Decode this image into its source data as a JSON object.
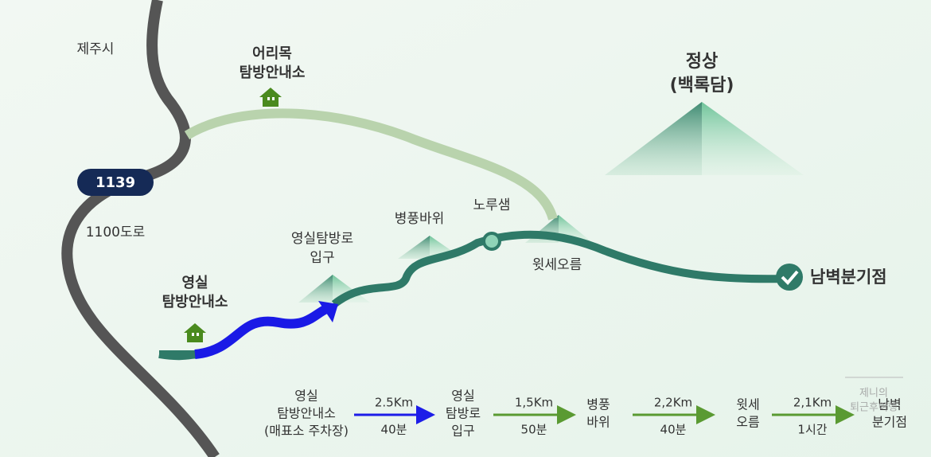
{
  "map": {
    "city": "제주시",
    "road_number": "1139",
    "road_name": "1100도로",
    "places": [
      {
        "lines": [
          "어리목",
          "탐방안내소"
        ]
      },
      {
        "lines": [
          "정상",
          "(백록담)"
        ]
      },
      {
        "lines": [
          "영실",
          "탐방안내소"
        ]
      },
      {
        "lines": [
          "영실탐방로",
          "입구"
        ]
      },
      {
        "lines": [
          "병풍바위"
        ]
      },
      {
        "lines": [
          "노루샘"
        ]
      },
      {
        "lines": [
          "윗세오름"
        ]
      },
      {
        "lines": [
          "남벽분기점"
        ]
      }
    ]
  },
  "route": {
    "stops": [
      {
        "lines": [
          "영실",
          "탐방안내소",
          "(매표소 주차장)"
        ]
      },
      {
        "lines": [
          "영실",
          "탐방로",
          "입구"
        ]
      },
      {
        "lines": [
          "병풍",
          "바위"
        ]
      },
      {
        "lines": [
          "윗세",
          "오름"
        ]
      },
      {
        "lines": [
          "남벽",
          "분기점"
        ]
      }
    ],
    "legs": [
      {
        "distance": "2.5Km",
        "time": "40분"
      },
      {
        "distance": "1,5Km",
        "time": "50분"
      },
      {
        "distance": "2,2Km",
        "time": "40분"
      },
      {
        "distance": "2,1Km",
        "time": "1시간"
      }
    ]
  },
  "watermark": [
    "제니의",
    "퇴근후여행"
  ]
}
